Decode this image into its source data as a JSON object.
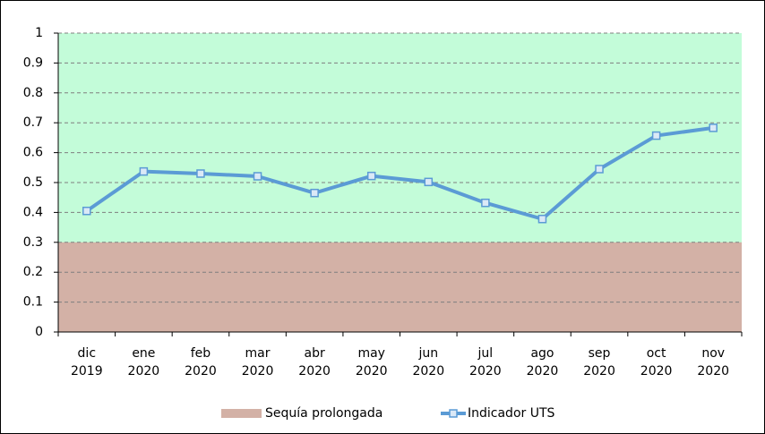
{
  "chart_data": {
    "type": "line",
    "categories": [
      [
        "dic",
        "2019"
      ],
      [
        "ene",
        "2020"
      ],
      [
        "feb",
        "2020"
      ],
      [
        "mar",
        "2020"
      ],
      [
        "abr",
        "2020"
      ],
      [
        "may",
        "2020"
      ],
      [
        "jun",
        "2020"
      ],
      [
        "jul",
        "2020"
      ],
      [
        "ago",
        "2020"
      ],
      [
        "sep",
        "2020"
      ],
      [
        "oct",
        "2020"
      ],
      [
        "nov",
        "2020"
      ]
    ],
    "series": [
      {
        "name": "Indicador UTS",
        "color": "#5b9bd5",
        "values": [
          0.405,
          0.537,
          0.53,
          0.521,
          0.465,
          0.522,
          0.502,
          0.432,
          0.378,
          0.545,
          0.657,
          0.683
        ]
      }
    ],
    "bands": [
      {
        "name": "Sequía prolongada",
        "from": 0,
        "to": 0.3,
        "color": "#d3b1a6"
      }
    ],
    "plot_background": "#c3fcd9",
    "ylim": [
      0,
      1
    ],
    "yticks": [
      0,
      0.1,
      0.2,
      0.3,
      0.4,
      0.5,
      0.6,
      0.7,
      0.8,
      0.9,
      1
    ],
    "grid": true,
    "legend": "bottom"
  }
}
